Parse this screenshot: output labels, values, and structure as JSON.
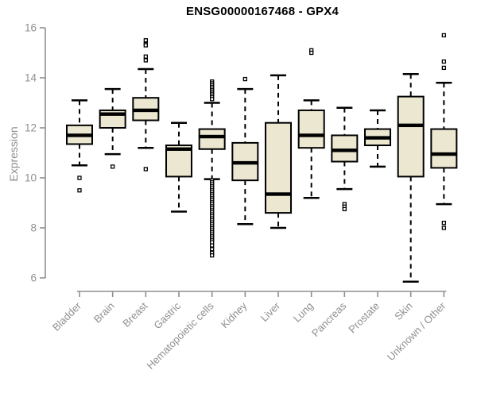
{
  "chart_data": {
    "type": "boxplot",
    "title": "ENSG00000167468 - GPX4",
    "ylabel": "Expression",
    "xlabel": "",
    "ylim": [
      6,
      16
    ],
    "yticks": [
      6,
      8,
      10,
      12,
      14,
      16
    ],
    "grid": false,
    "legend": "none",
    "title_color": "#000000",
    "axis_color": "#8f8f8f",
    "label_color": "#8f8f8f",
    "box_fill": "#ece7d0",
    "box_stroke": "#000000",
    "categories": [
      "Bladder",
      "Brain",
      "Breast",
      "Gastric",
      "Hematopoietic cells",
      "Kidney",
      "Liver",
      "Lung",
      "Pancreas",
      "Prostate",
      "Skin",
      "Unknown / Other"
    ],
    "series": [
      {
        "category": "Bladder",
        "whisker_low": 10.5,
        "q1": 11.35,
        "median": 11.7,
        "q3": 12.1,
        "whisker_high": 13.1,
        "outliers": [
          10.0,
          9.5
        ]
      },
      {
        "category": "Brain",
        "whisker_low": 10.95,
        "q1": 12.0,
        "median": 12.55,
        "q3": 12.7,
        "whisker_high": 13.55,
        "outliers": [
          10.45
        ]
      },
      {
        "category": "Breast",
        "whisker_low": 11.2,
        "q1": 12.3,
        "median": 12.7,
        "q3": 13.2,
        "whisker_high": 14.35,
        "outliers": [
          15.5,
          15.35,
          15.3,
          14.85,
          14.7,
          10.35
        ]
      },
      {
        "category": "Gastric",
        "whisker_low": 8.65,
        "q1": 10.05,
        "median": 11.15,
        "q3": 11.3,
        "whisker_high": 12.2,
        "outliers": []
      },
      {
        "category": "Hematopoietic cells",
        "whisker_low": 9.95,
        "q1": 11.15,
        "median": 11.65,
        "q3": 11.95,
        "whisker_high": 13.0,
        "outliers": [
          13.85,
          13.78,
          13.71,
          13.64,
          13.57,
          13.5,
          13.43,
          13.36,
          13.29,
          13.22,
          13.15,
          9.9,
          9.82,
          9.74,
          9.66,
          9.58,
          9.5,
          9.42,
          9.34,
          9.26,
          9.18,
          9.1,
          9.02,
          8.94,
          8.86,
          8.78,
          8.7,
          8.62,
          8.54,
          8.46,
          8.38,
          8.3,
          8.22,
          8.14,
          8.06,
          7.98,
          7.9,
          7.82,
          7.74,
          7.66,
          7.58,
          7.5,
          7.42,
          7.3,
          7.15,
          7.0,
          6.9
        ]
      },
      {
        "category": "Kidney",
        "whisker_low": 8.15,
        "q1": 9.9,
        "median": 10.6,
        "q3": 11.4,
        "whisker_high": 13.55,
        "outliers": [
          13.95
        ]
      },
      {
        "category": "Liver",
        "whisker_low": 8.0,
        "q1": 8.6,
        "median": 9.35,
        "q3": 12.2,
        "whisker_high": 14.1,
        "outliers": []
      },
      {
        "category": "Lung",
        "whisker_low": 9.2,
        "q1": 11.2,
        "median": 11.7,
        "q3": 12.7,
        "whisker_high": 13.1,
        "outliers": [
          15.1,
          15.0
        ]
      },
      {
        "category": "Pancreas",
        "whisker_low": 9.55,
        "q1": 10.65,
        "median": 11.1,
        "q3": 11.7,
        "whisker_high": 12.8,
        "outliers": [
          8.95,
          8.85,
          8.75
        ]
      },
      {
        "category": "Prostate",
        "whisker_low": 10.45,
        "q1": 11.3,
        "median": 11.6,
        "q3": 11.95,
        "whisker_high": 12.7,
        "outliers": []
      },
      {
        "category": "Skin",
        "whisker_low": 5.85,
        "q1": 10.05,
        "median": 12.1,
        "q3": 13.25,
        "whisker_high": 14.15,
        "outliers": []
      },
      {
        "category": "Unknown / Other",
        "whisker_low": 8.95,
        "q1": 10.4,
        "median": 10.95,
        "q3": 11.95,
        "whisker_high": 13.8,
        "outliers": [
          15.7,
          14.65,
          14.4,
          8.2,
          8.0
        ]
      }
    ]
  }
}
